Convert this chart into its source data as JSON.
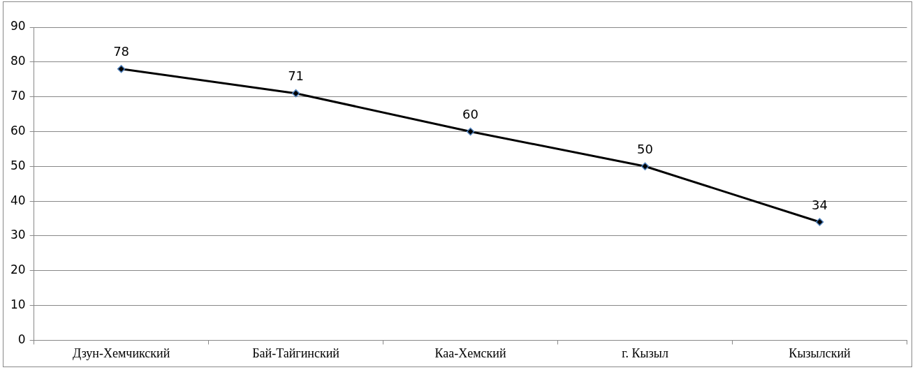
{
  "chart_data": {
    "type": "line",
    "categories": [
      "Дзун-Хемчикский",
      "Бай-Тайгинский",
      "Каа-Хемский",
      "г. Кызыл",
      "Кызылский"
    ],
    "series": [
      {
        "color": "#000000",
        "values": [
          78,
          71,
          60,
          50,
          34
        ]
      }
    ],
    "ylim": [
      0,
      90
    ],
    "yticks": [
      0,
      10,
      20,
      30,
      40,
      50,
      60,
      70,
      80,
      90
    ],
    "grid": "y",
    "legend": false,
    "marker": "diamond",
    "line_style": "solid",
    "data_labels": true
  }
}
